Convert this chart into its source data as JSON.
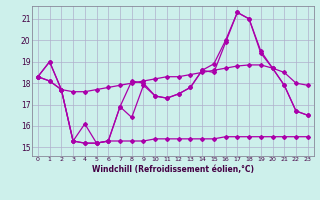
{
  "xlabel": "Windchill (Refroidissement éolien,°C)",
  "bg_color": "#cdf0eb",
  "grid_color": "#b0b0cc",
  "line_color": "#aa00aa",
  "xlim": [
    -0.5,
    23.5
  ],
  "ylim": [
    14.6,
    21.6
  ],
  "xticks": [
    0,
    1,
    2,
    3,
    4,
    5,
    6,
    7,
    8,
    9,
    10,
    11,
    12,
    13,
    14,
    15,
    16,
    17,
    18,
    19,
    20,
    21,
    22,
    23
  ],
  "yticks": [
    15,
    16,
    17,
    18,
    19,
    20,
    21
  ],
  "line1_x": [
    0,
    1,
    2,
    3,
    4,
    5,
    6,
    7,
    8,
    9,
    10,
    11,
    12,
    13,
    14,
    15,
    16,
    17,
    18,
    19,
    20,
    21,
    22,
    23
  ],
  "line1_y": [
    18.3,
    19.0,
    17.7,
    15.3,
    16.1,
    15.2,
    15.3,
    16.9,
    16.4,
    17.9,
    17.4,
    17.3,
    17.5,
    17.8,
    18.6,
    18.9,
    20.0,
    21.3,
    21.0,
    19.5,
    18.7,
    17.9,
    16.7,
    16.5
  ],
  "line2_x": [
    0,
    1,
    2,
    3,
    4,
    5,
    6,
    7,
    8,
    9,
    10,
    11,
    12,
    13,
    14,
    15,
    16,
    17,
    18,
    19,
    20,
    21,
    22,
    23
  ],
  "line2_y": [
    18.3,
    18.1,
    17.7,
    17.6,
    17.6,
    17.7,
    17.8,
    17.9,
    18.0,
    18.1,
    18.2,
    18.3,
    18.3,
    18.4,
    18.5,
    18.6,
    18.7,
    18.8,
    18.85,
    18.85,
    18.7,
    18.5,
    18.0,
    17.9
  ],
  "line3_x": [
    0,
    1,
    2,
    3,
    4,
    5,
    6,
    7,
    8,
    9,
    10,
    11,
    12,
    13,
    14,
    15,
    16,
    17,
    18,
    19,
    20,
    21,
    22,
    23
  ],
  "line3_y": [
    18.3,
    19.0,
    17.7,
    15.3,
    15.2,
    15.2,
    15.3,
    16.9,
    18.1,
    18.0,
    17.4,
    17.3,
    17.5,
    17.8,
    18.6,
    18.5,
    19.9,
    21.3,
    21.0,
    19.4,
    18.7,
    17.9,
    16.7,
    16.5
  ],
  "line4_x": [
    0,
    1,
    2,
    3,
    4,
    5,
    6,
    7,
    8,
    9,
    10,
    11,
    12,
    13,
    14,
    15,
    16,
    17,
    18,
    19,
    20,
    21,
    22,
    23
  ],
  "line4_y": [
    18.3,
    18.1,
    17.7,
    15.3,
    15.2,
    15.2,
    15.3,
    15.3,
    15.3,
    15.3,
    15.4,
    15.4,
    15.4,
    15.4,
    15.4,
    15.4,
    15.5,
    15.5,
    15.5,
    15.5,
    15.5,
    15.5,
    15.5,
    15.5
  ]
}
